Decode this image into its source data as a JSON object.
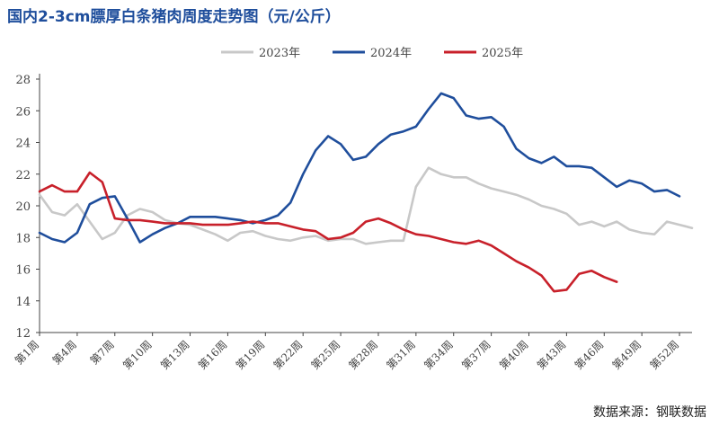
{
  "header": {
    "title": "国内2-3cm膘厚白条猪肉周度走势图（元/公斤）"
  },
  "footer": {
    "source": "数据来源：钢联数据"
  },
  "chart_data": {
    "type": "line",
    "title": "国内2-3cm膘厚白条猪肉周度走势图（元/公斤）",
    "xlabel": "",
    "ylabel": "",
    "ylim": [
      12,
      28
    ],
    "yticks": [
      12,
      14,
      16,
      18,
      20,
      22,
      24,
      26,
      28
    ],
    "grid": false,
    "legend_position": "top-center",
    "x_tick_labels": [
      "第1周",
      "第4周",
      "第7周",
      "第10周",
      "第13周",
      "第16周",
      "第19周",
      "第22周",
      "第25周",
      "第28周",
      "第31周",
      "第34周",
      "第37周",
      "第40周",
      "第43周",
      "第46周",
      "第49周",
      "第52周"
    ],
    "x_tick_weeks": [
      1,
      4,
      7,
      10,
      13,
      16,
      19,
      22,
      25,
      28,
      31,
      34,
      37,
      40,
      43,
      46,
      49,
      52
    ],
    "x_range": [
      1,
      53
    ],
    "series": [
      {
        "name": "2023年",
        "color": "#c8c8c8",
        "weeks": [
          1,
          2,
          3,
          4,
          5,
          6,
          7,
          8,
          9,
          10,
          11,
          12,
          13,
          14,
          15,
          16,
          17,
          18,
          19,
          20,
          21,
          22,
          23,
          24,
          25,
          26,
          27,
          28,
          29,
          30,
          31,
          32,
          33,
          34,
          35,
          36,
          37,
          38,
          39,
          40,
          41,
          42,
          43,
          44,
          45,
          46,
          47,
          48,
          49,
          50,
          51,
          52,
          53
        ],
        "values": [
          20.7,
          19.6,
          19.4,
          20.1,
          19.0,
          17.9,
          18.3,
          19.4,
          19.8,
          19.6,
          19.1,
          18.9,
          18.8,
          18.5,
          18.2,
          17.8,
          18.3,
          18.4,
          18.1,
          17.9,
          17.8,
          18.0,
          18.1,
          17.8,
          17.9,
          17.9,
          17.6,
          17.7,
          17.8,
          17.8,
          21.2,
          22.4,
          22.0,
          21.8,
          21.8,
          21.4,
          21.1,
          20.9,
          20.7,
          20.4,
          20.0,
          19.8,
          19.5,
          18.8,
          19.0,
          18.7,
          19.0,
          18.5,
          18.3,
          18.2,
          19.0,
          18.8,
          18.6
        ]
      },
      {
        "name": "2024年",
        "color": "#1f4e9c",
        "weeks": [
          1,
          2,
          3,
          4,
          5,
          6,
          7,
          8,
          9,
          10,
          11,
          12,
          13,
          14,
          15,
          16,
          17,
          18,
          19,
          20,
          21,
          22,
          23,
          24,
          25,
          26,
          27,
          28,
          29,
          30,
          31,
          32,
          33,
          34,
          35,
          36,
          37,
          38,
          39,
          40,
          41,
          42,
          43,
          44,
          45,
          46,
          47,
          48,
          49,
          50,
          51,
          52
        ],
        "values": [
          18.3,
          17.9,
          17.7,
          18.3,
          20.1,
          20.5,
          20.6,
          19.2,
          17.7,
          18.2,
          18.6,
          18.9,
          19.3,
          19.3,
          19.3,
          19.2,
          19.1,
          18.9,
          19.1,
          19.4,
          20.2,
          22.0,
          23.5,
          24.4,
          23.9,
          22.9,
          23.1,
          23.9,
          24.5,
          24.7,
          25.0,
          26.1,
          27.1,
          26.8,
          25.7,
          25.5,
          25.6,
          25.0,
          23.6,
          23.0,
          22.7,
          23.1,
          22.5,
          22.5,
          22.4,
          21.8,
          21.2,
          21.6,
          21.4,
          20.9,
          21.0,
          20.6
        ]
      },
      {
        "name": "2025年",
        "color": "#c8202a",
        "weeks": [
          1,
          2,
          3,
          4,
          5,
          6,
          7,
          8,
          9,
          10,
          11,
          12,
          13,
          14,
          15,
          16,
          17,
          18,
          19,
          20,
          21,
          22,
          23,
          24,
          25,
          26,
          27,
          28,
          29,
          30,
          31,
          32,
          33,
          34,
          35,
          36,
          37,
          38,
          39,
          40,
          41,
          42,
          43,
          44,
          45,
          46,
          47,
          48
        ],
        "values": [
          20.9,
          21.3,
          20.9,
          20.9,
          22.1,
          21.5,
          19.2,
          19.1,
          19.1,
          19.0,
          18.9,
          18.9,
          18.9,
          18.8,
          18.8,
          18.8,
          18.9,
          19.0,
          18.9,
          18.9,
          18.7,
          18.5,
          18.4,
          17.9,
          18.0,
          18.3,
          19.0,
          19.2,
          18.9,
          18.5,
          18.2,
          18.1,
          17.9,
          17.7,
          17.6,
          17.8,
          17.5,
          17.0,
          16.5,
          16.1,
          15.6,
          14.6,
          14.7,
          15.7,
          15.9,
          15.5,
          15.2,
          null
        ]
      }
    ]
  }
}
